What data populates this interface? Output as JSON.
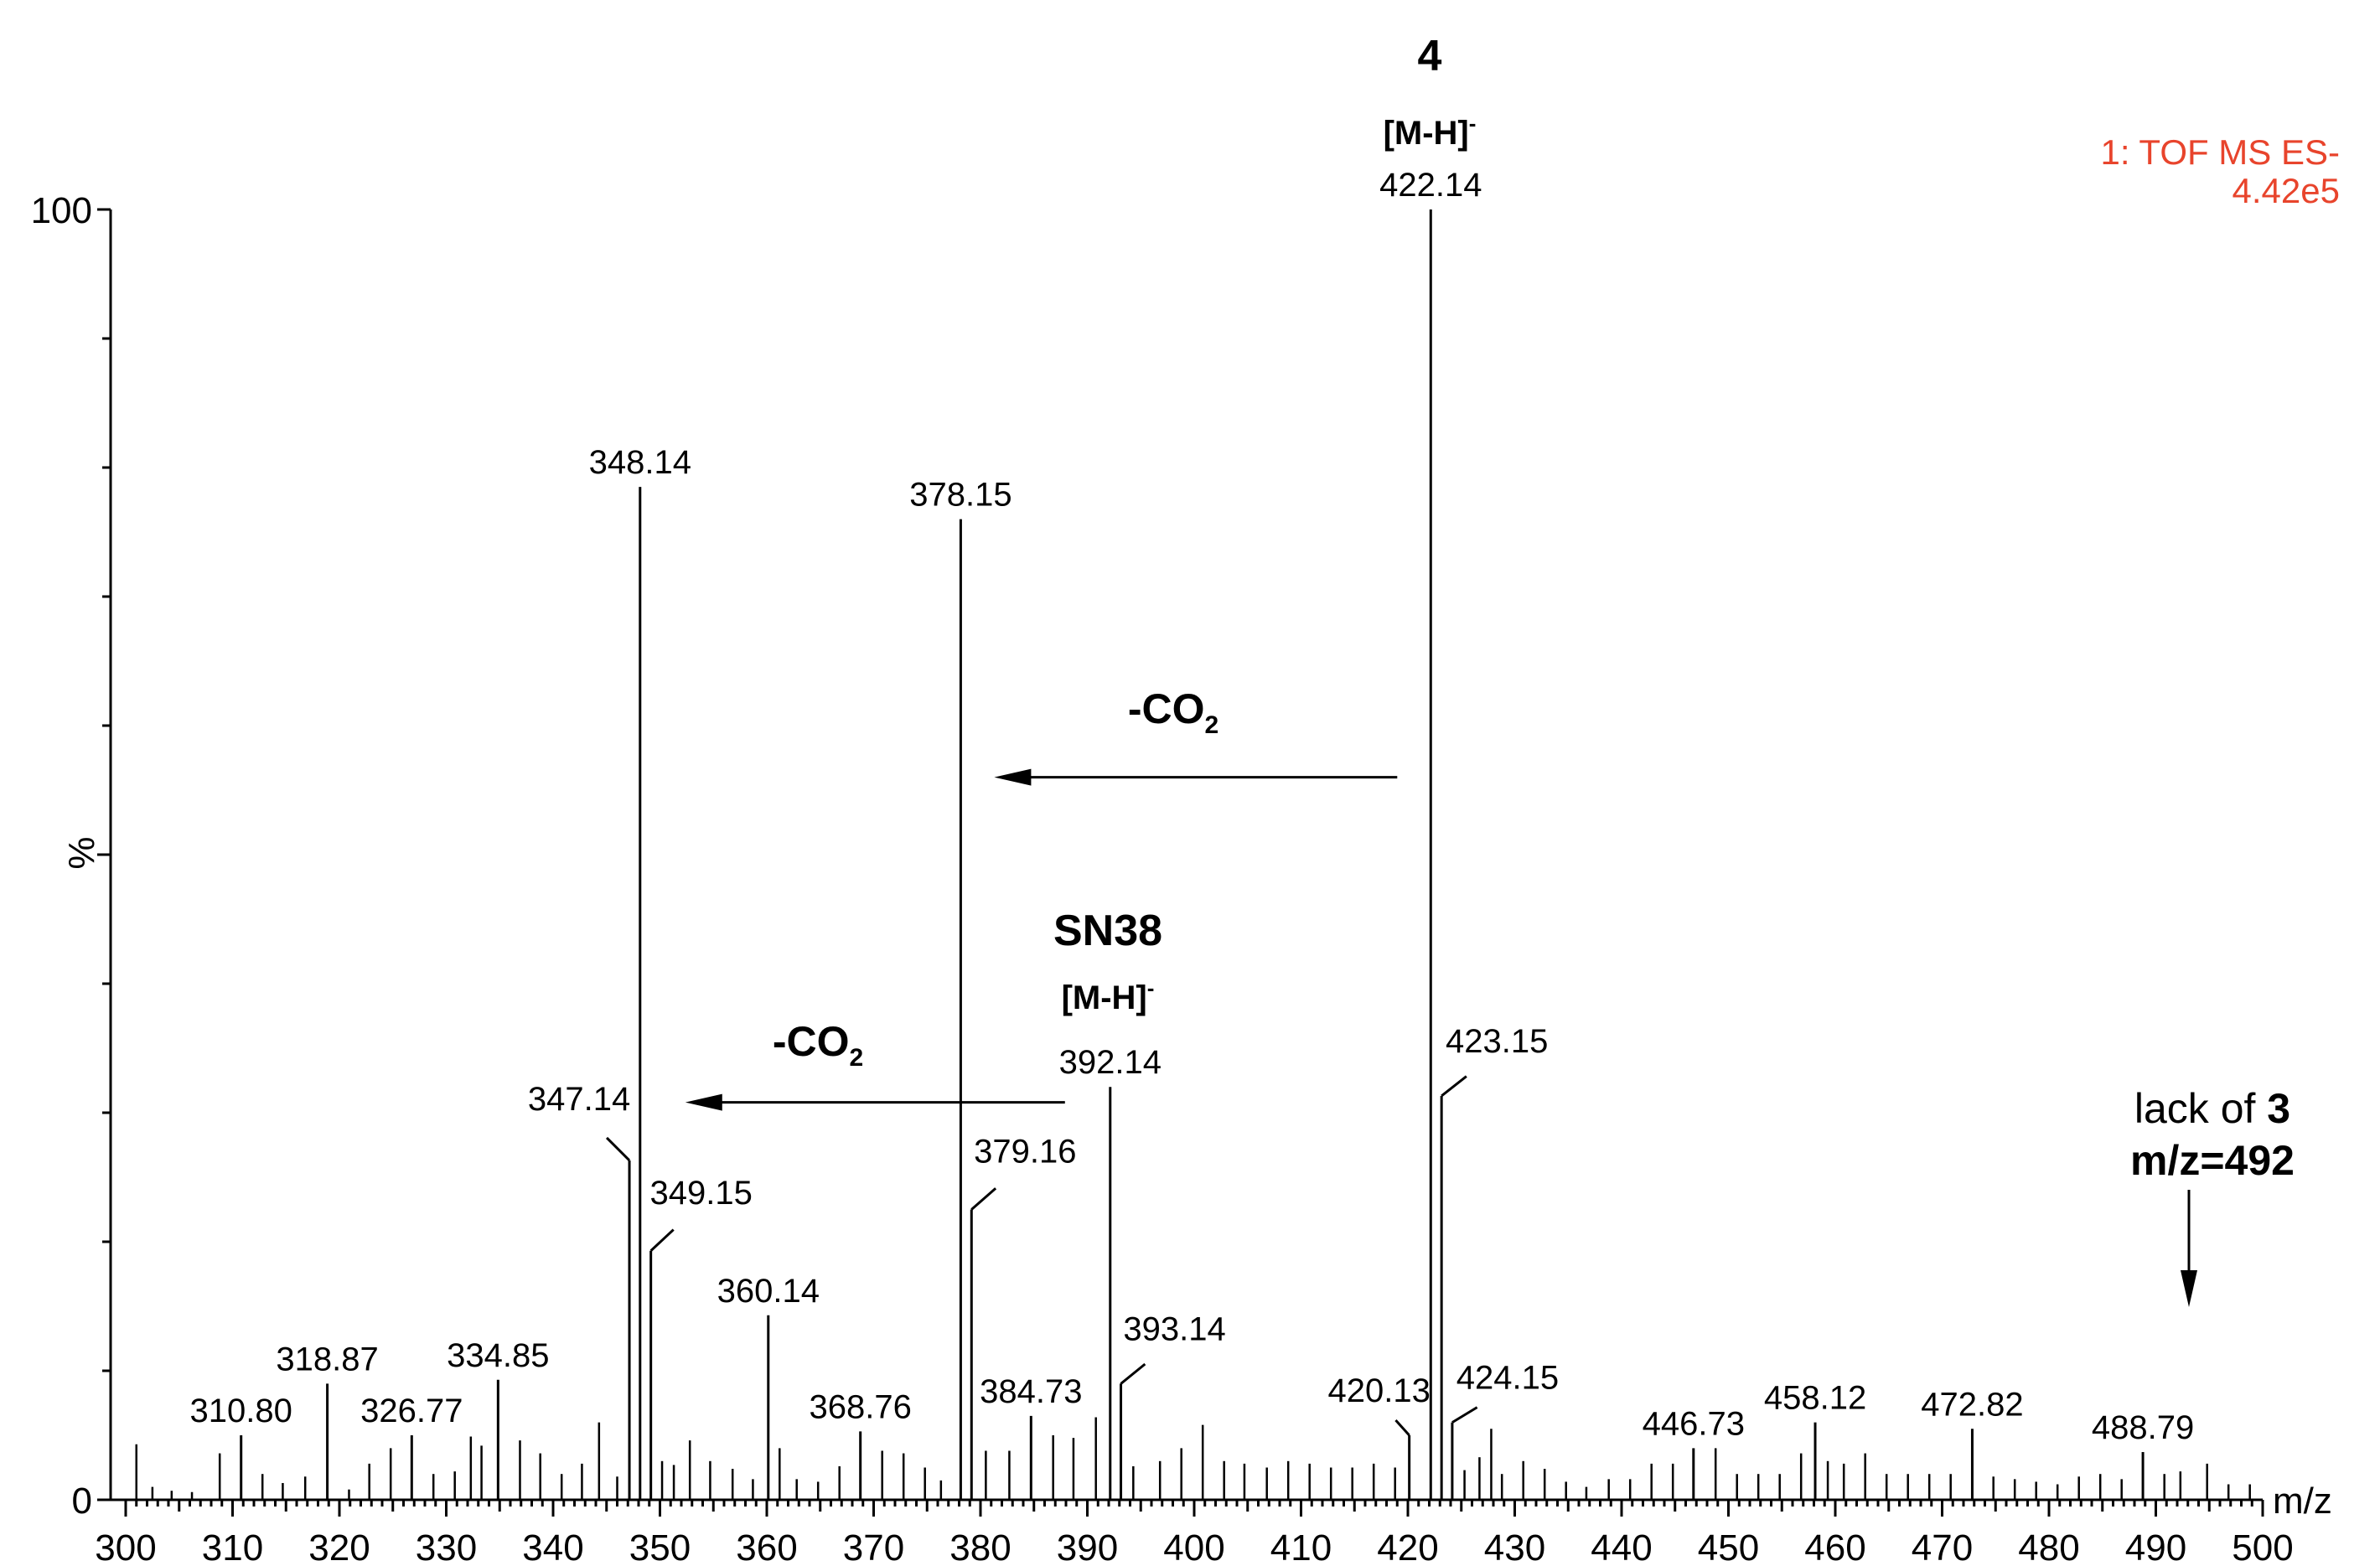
{
  "colors": {
    "instrument_text": "#e8442c",
    "ink": "#000000",
    "background": "#ffffff"
  },
  "instrument": {
    "line1": "1: TOF MS ES-",
    "line2": "4.42e5"
  },
  "chart_data": {
    "type": "bar",
    "subtype": "mass-spectrum-stick",
    "xlabel": "m/z",
    "ylabel": "%",
    "xlim": [
      300,
      500
    ],
    "ylim": [
      0,
      100
    ],
    "x_ticks_major": [
      "300",
      "310",
      "320",
      "330",
      "340",
      "350",
      "360",
      "370",
      "380",
      "390",
      "400",
      "410",
      "420",
      "430",
      "440",
      "450",
      "460",
      "470",
      "480",
      "490",
      "500"
    ],
    "y_ticks_labeled": [
      "0",
      "100"
    ],
    "grid": false,
    "peaks": [
      {
        "mz": 310.8,
        "label": "310.80",
        "intensity": 5.0
      },
      {
        "mz": 318.87,
        "label": "318.87",
        "intensity": 9.0
      },
      {
        "mz": 326.77,
        "label": "326.77",
        "intensity": 5.0
      },
      {
        "mz": 334.85,
        "label": "334.85",
        "intensity": 9.3
      },
      {
        "mz": 347.14,
        "label": "347.14",
        "intensity": 26.3
      },
      {
        "mz": 348.14,
        "label": "348.14",
        "intensity": 78.5
      },
      {
        "mz": 349.15,
        "label": "349.15",
        "intensity": 19.3
      },
      {
        "mz": 360.14,
        "label": "360.14",
        "intensity": 14.3
      },
      {
        "mz": 368.76,
        "label": "368.76",
        "intensity": 5.3
      },
      {
        "mz": 378.15,
        "label": "378.15",
        "intensity": 76.0
      },
      {
        "mz": 379.16,
        "label": "379.16",
        "intensity": 22.5
      },
      {
        "mz": 384.73,
        "label": "384.73",
        "intensity": 6.5
      },
      {
        "mz": 392.14,
        "label": "392.14",
        "intensity": 32.0
      },
      {
        "mz": 393.14,
        "label": "393.14",
        "intensity": 9.0
      },
      {
        "mz": 420.13,
        "label": "420.13",
        "intensity": 5.0
      },
      {
        "mz": 422.14,
        "label": "422.14",
        "intensity": 100.0
      },
      {
        "mz": 423.15,
        "label": "423.15",
        "intensity": 31.3
      },
      {
        "mz": 424.15,
        "label": "424.15",
        "intensity": 6.0
      },
      {
        "mz": 446.73,
        "label": "446.73",
        "intensity": 4.0
      },
      {
        "mz": 458.12,
        "label": "458.12",
        "intensity": 6.0
      },
      {
        "mz": 472.82,
        "label": "472.82",
        "intensity": 5.5
      },
      {
        "mz": 488.79,
        "label": "488.79",
        "intensity": 3.7
      }
    ],
    "minor_peaks": [
      {
        "mz": 301.0,
        "intensity": 4.3
      },
      {
        "mz": 302.5,
        "intensity": 1.0
      },
      {
        "mz": 304.3,
        "intensity": 0.7
      },
      {
        "mz": 306.2,
        "intensity": 0.6
      },
      {
        "mz": 308.8,
        "intensity": 3.6
      },
      {
        "mz": 312.8,
        "intensity": 2.0
      },
      {
        "mz": 314.7,
        "intensity": 1.3
      },
      {
        "mz": 316.8,
        "intensity": 1.8
      },
      {
        "mz": 320.9,
        "intensity": 0.8
      },
      {
        "mz": 322.8,
        "intensity": 2.8
      },
      {
        "mz": 324.8,
        "intensity": 4.0
      },
      {
        "mz": 328.8,
        "intensity": 2.0
      },
      {
        "mz": 330.8,
        "intensity": 2.2
      },
      {
        "mz": 332.3,
        "intensity": 4.9
      },
      {
        "mz": 333.3,
        "intensity": 4.2
      },
      {
        "mz": 336.9,
        "intensity": 4.6
      },
      {
        "mz": 338.8,
        "intensity": 3.6
      },
      {
        "mz": 340.8,
        "intensity": 2.0
      },
      {
        "mz": 342.7,
        "intensity": 2.8
      },
      {
        "mz": 344.3,
        "intensity": 6.0
      },
      {
        "mz": 346.0,
        "intensity": 1.8
      },
      {
        "mz": 350.2,
        "intensity": 3.0
      },
      {
        "mz": 351.3,
        "intensity": 2.7
      },
      {
        "mz": 352.8,
        "intensity": 4.6
      },
      {
        "mz": 354.7,
        "intensity": 3.0
      },
      {
        "mz": 356.8,
        "intensity": 2.4
      },
      {
        "mz": 358.7,
        "intensity": 1.6
      },
      {
        "mz": 361.2,
        "intensity": 4.0
      },
      {
        "mz": 362.8,
        "intensity": 1.6
      },
      {
        "mz": 364.8,
        "intensity": 1.4
      },
      {
        "mz": 366.8,
        "intensity": 2.6
      },
      {
        "mz": 370.8,
        "intensity": 3.8
      },
      {
        "mz": 372.8,
        "intensity": 3.6
      },
      {
        "mz": 374.8,
        "intensity": 2.5
      },
      {
        "mz": 376.3,
        "intensity": 1.5
      },
      {
        "mz": 380.5,
        "intensity": 3.8
      },
      {
        "mz": 382.7,
        "intensity": 3.8
      },
      {
        "mz": 386.8,
        "intensity": 5.0
      },
      {
        "mz": 388.7,
        "intensity": 4.8
      },
      {
        "mz": 390.8,
        "intensity": 6.4
      },
      {
        "mz": 394.3,
        "intensity": 2.6
      },
      {
        "mz": 396.8,
        "intensity": 3.0
      },
      {
        "mz": 398.8,
        "intensity": 4.0
      },
      {
        "mz": 400.8,
        "intensity": 5.8
      },
      {
        "mz": 402.8,
        "intensity": 3.0
      },
      {
        "mz": 404.7,
        "intensity": 2.8
      },
      {
        "mz": 406.8,
        "intensity": 2.5
      },
      {
        "mz": 408.8,
        "intensity": 3.0
      },
      {
        "mz": 410.8,
        "intensity": 2.8
      },
      {
        "mz": 412.8,
        "intensity": 2.5
      },
      {
        "mz": 414.8,
        "intensity": 2.5
      },
      {
        "mz": 416.8,
        "intensity": 2.8
      },
      {
        "mz": 418.8,
        "intensity": 2.5
      },
      {
        "mz": 425.3,
        "intensity": 2.3
      },
      {
        "mz": 426.7,
        "intensity": 3.3
      },
      {
        "mz": 427.8,
        "intensity": 5.5
      },
      {
        "mz": 428.8,
        "intensity": 2.0
      },
      {
        "mz": 430.8,
        "intensity": 3.0
      },
      {
        "mz": 432.8,
        "intensity": 2.4
      },
      {
        "mz": 434.8,
        "intensity": 1.4
      },
      {
        "mz": 436.7,
        "intensity": 1.0
      },
      {
        "mz": 438.8,
        "intensity": 1.6
      },
      {
        "mz": 440.8,
        "intensity": 1.6
      },
      {
        "mz": 442.8,
        "intensity": 2.8
      },
      {
        "mz": 444.8,
        "intensity": 2.8
      },
      {
        "mz": 448.8,
        "intensity": 4.0
      },
      {
        "mz": 450.8,
        "intensity": 2.0
      },
      {
        "mz": 452.8,
        "intensity": 2.0
      },
      {
        "mz": 454.8,
        "intensity": 2.0
      },
      {
        "mz": 456.8,
        "intensity": 3.6
      },
      {
        "mz": 459.3,
        "intensity": 3.0
      },
      {
        "mz": 460.8,
        "intensity": 2.8
      },
      {
        "mz": 462.8,
        "intensity": 3.6
      },
      {
        "mz": 464.8,
        "intensity": 2.0
      },
      {
        "mz": 466.8,
        "intensity": 2.0
      },
      {
        "mz": 468.8,
        "intensity": 2.0
      },
      {
        "mz": 470.8,
        "intensity": 2.0
      },
      {
        "mz": 474.8,
        "intensity": 1.8
      },
      {
        "mz": 476.8,
        "intensity": 1.6
      },
      {
        "mz": 478.8,
        "intensity": 1.4
      },
      {
        "mz": 480.8,
        "intensity": 1.2
      },
      {
        "mz": 482.8,
        "intensity": 1.8
      },
      {
        "mz": 484.8,
        "intensity": 2.0
      },
      {
        "mz": 486.8,
        "intensity": 1.6
      },
      {
        "mz": 490.8,
        "intensity": 2.0
      },
      {
        "mz": 492.3,
        "intensity": 2.2
      },
      {
        "mz": 494.8,
        "intensity": 2.8
      },
      {
        "mz": 496.8,
        "intensity": 1.2
      },
      {
        "mz": 498.8,
        "intensity": 1.2
      }
    ],
    "annotations": {
      "compound_4": {
        "name": "4",
        "species_main": "[M-H]",
        "species_sup": "-",
        "mz": 422.14
      },
      "compound_sn38": {
        "name": "SN38",
        "species_main": "[M-H]",
        "species_sup": "-",
        "mz": 392.14
      },
      "loss_1": {
        "main": "-CO",
        "sub": "2",
        "from_mz": 422.14,
        "to_mz": 378.15
      },
      "loss_2": {
        "main": "-CO",
        "sub": "2",
        "from_mz": 392.14,
        "to_mz": 348.14
      },
      "missing": {
        "line1_prefix": "lack of ",
        "line1_bold": "3",
        "line2": "m/z=492",
        "mz": 492
      }
    }
  }
}
